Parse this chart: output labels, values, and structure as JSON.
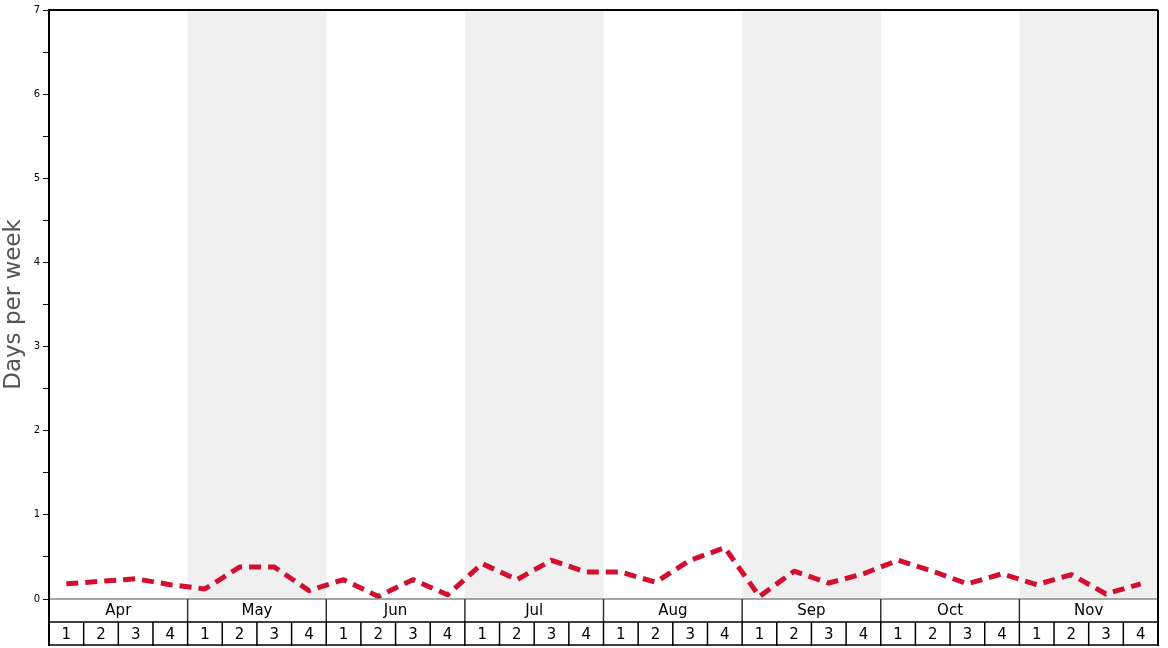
{
  "chart_data": {
    "type": "line",
    "ylabel": "Days per week",
    "categories": [
      "1",
      "2",
      "3",
      "4",
      "1",
      "2",
      "3",
      "4",
      "1",
      "2",
      "3",
      "4",
      "1",
      "2",
      "3",
      "4",
      "1",
      "2",
      "3",
      "4",
      "1",
      "2",
      "3",
      "4",
      "1",
      "2",
      "3",
      "4",
      "1",
      "2",
      "3",
      "4"
    ],
    "series": [
      {
        "color": "#d20f30",
        "values": [
          0.18,
          0.21,
          0.24,
          0.17,
          0.12,
          0.38,
          0.38,
          0.1,
          0.23,
          0.03,
          0.23,
          0.05,
          0.42,
          0.23,
          0.46,
          0.32,
          0.32,
          0.2,
          0.46,
          0.61,
          0.03,
          0.33,
          0.19,
          0.3,
          0.46,
          0.33,
          0.18,
          0.3,
          0.17,
          0.29,
          0.06,
          0.18
        ]
      }
    ],
    "line_style": "dashed",
    "marker": "none",
    "annotations": [
      "Apr",
      "May",
      "Jun",
      "Jul",
      "Aug",
      "Sep",
      "Oct",
      "Nov"
    ],
    "ylim": [
      0,
      7
    ],
    "yticks": [
      0,
      {
        "value": 0.5,
        "label": null
      },
      1,
      {
        "value": 1.5,
        "label": null
      },
      2,
      {
        "value": 2.5,
        "label": null
      },
      3,
      {
        "value": 3.5,
        "label": null
      },
      4,
      {
        "value": 4.5,
        "label": null
      },
      5,
      {
        "value": 5.5,
        "label": null
      },
      6,
      {
        "value": 6.5,
        "label": null
      },
      7
    ]
  }
}
